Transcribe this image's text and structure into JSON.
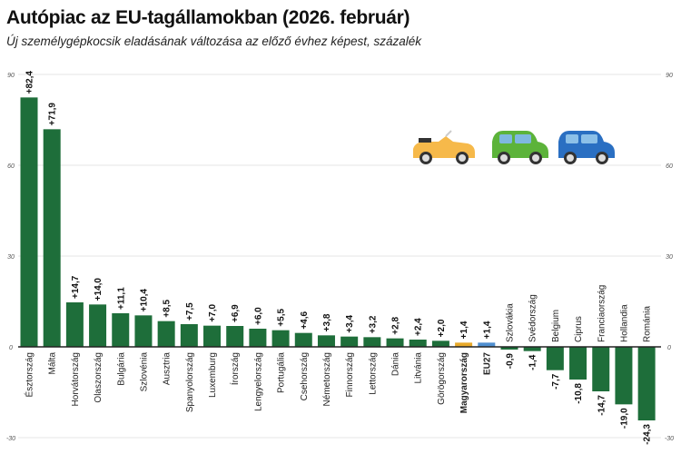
{
  "chart_data": {
    "type": "bar",
    "title": "Autópiac az EU-tagállamokban (2026. február)",
    "subtitle": "Új személygépkocsik eladásának változása az előző évhez képest, százalék",
    "ylim": [
      -30,
      90
    ],
    "yticks": [
      90,
      60,
      30,
      0,
      -30
    ],
    "grid": true,
    "categories": [
      "Észtország",
      "Málta",
      "Horvátország",
      "Olaszország",
      "Bulgária",
      "Szlovénia",
      "Ausztria",
      "Spanyolország",
      "Luxemburg",
      "Írország",
      "Lengyelország",
      "Portugália",
      "Csehország",
      "Németország",
      "Finnország",
      "Lettország",
      "Dánia",
      "Litvánia",
      "Görögország",
      "Magyarország",
      "EU27",
      "Szlovákia",
      "Svédország",
      "Belgium",
      "Ciprus",
      "Franciaország",
      "Hollandia",
      "Románia"
    ],
    "values": [
      82.4,
      71.9,
      14.7,
      14.0,
      11.1,
      10.4,
      8.5,
      7.5,
      7.0,
      6.9,
      6.0,
      5.5,
      4.6,
      3.8,
      3.4,
      3.2,
      2.8,
      2.4,
      2.0,
      1.4,
      1.4,
      -0.9,
      -1.4,
      -7.7,
      -10.8,
      -14.7,
      -19.0,
      -24.3
    ],
    "labels": [
      "+82,4",
      "+71,9",
      "+14,7",
      "+14,0",
      "+11,1",
      "+10,4",
      "+8,5",
      "+7,5",
      "+7,0",
      "+6,9",
      "+6,0",
      "+5,5",
      "+4,6",
      "+3,8",
      "+3,4",
      "+3,2",
      "+2,8",
      "+2,4",
      "+2,0",
      "+1,4",
      "+1,4",
      "-0,9",
      "-1,4",
      "-7,7",
      "-10,8",
      "-14,7",
      "-19,0",
      "-24,3"
    ],
    "colors": {
      "default": "#1e6e3a",
      "Magyarország": "#e8a92a",
      "EU27": "#4f8fd0"
    },
    "bold_categories": [
      "Magyarország",
      "EU27"
    ]
  },
  "decoration": {
    "icons": [
      "convertible-car-icon",
      "green-car-icon",
      "blue-car-icon"
    ]
  }
}
